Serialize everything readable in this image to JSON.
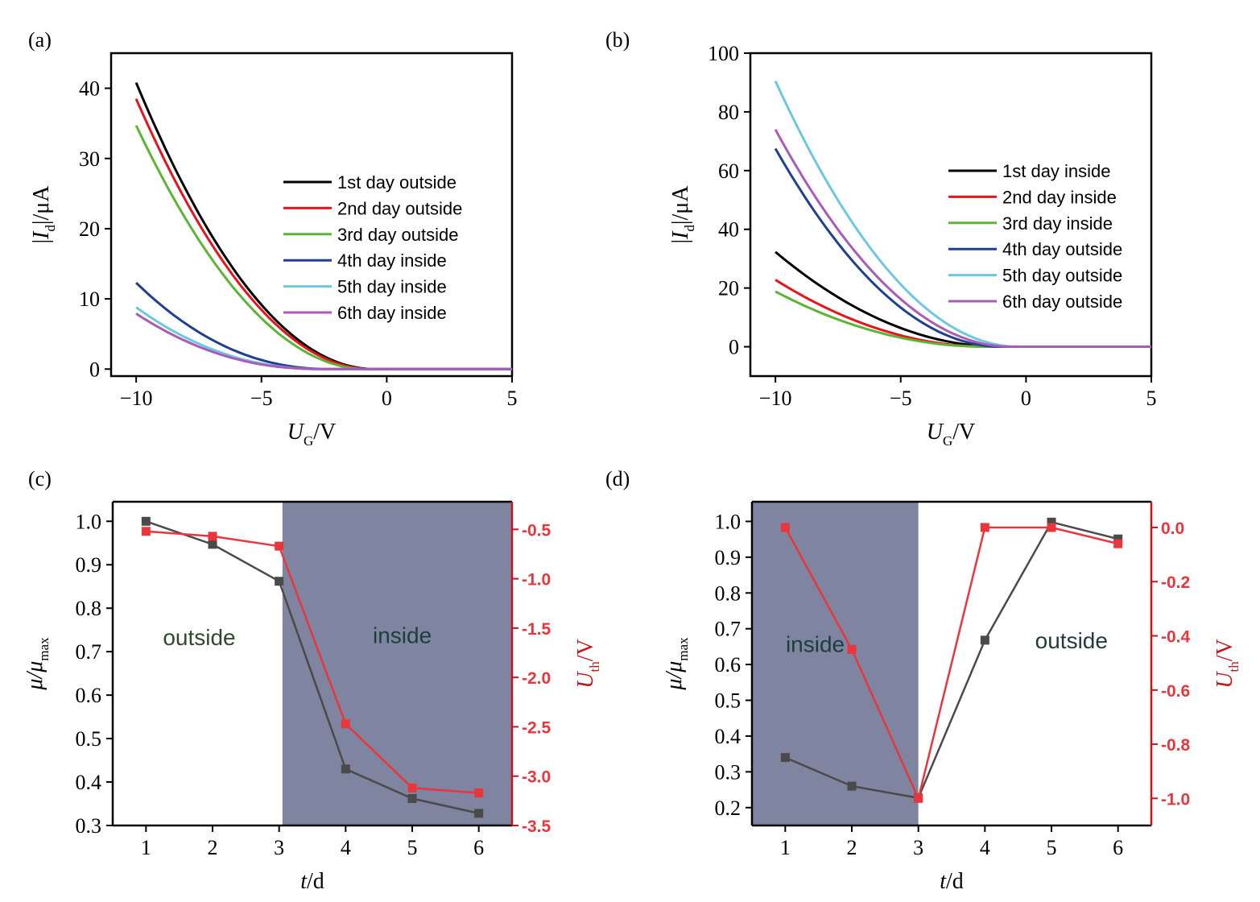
{
  "colors": {
    "axis": "#000000",
    "black": "#000000",
    "red": "#e8141c",
    "green": "#5cb536",
    "blue": "#1f3f91",
    "cyan": "#6cc8e0",
    "purple": "#a95bb5",
    "shade": "#7f85a0",
    "gray_series": "#4a4a4a",
    "red_series": "#e8363c",
    "red_axis": "#c8141c"
  },
  "chart_data": [
    {
      "id": "a",
      "panel_label": "(a)",
      "type": "line",
      "xlabel_main": "U",
      "xlabel_sub": "G",
      "xlabel_tail": "/V",
      "ylabel_pre": "|",
      "ylabel_main": "I",
      "ylabel_sub": "d",
      "ylabel_tail": "|/μA",
      "xlim": [
        -11,
        5
      ],
      "ylim": [
        -1,
        45
      ],
      "xticks": [
        -10,
        -5,
        0,
        5
      ],
      "xtick_labels": [
        "−10",
        "−5",
        "0",
        "5"
      ],
      "yticks": [
        0,
        10,
        20,
        30,
        40
      ],
      "ytick_labels": [
        "0",
        "10",
        "20",
        "30",
        "40"
      ],
      "legend_position": "right",
      "series": [
        {
          "name": "1st day outside",
          "color_key": "black",
          "x0": -10,
          "x_off": -0.5,
          "y_at_x0": 40.8,
          "exp": 2.0
        },
        {
          "name": "2nd day outside",
          "color_key": "red",
          "x0": -10,
          "x_off": -0.6,
          "y_at_x0": 38.5,
          "exp": 2.0
        },
        {
          "name": "3rd day outside",
          "color_key": "green",
          "x0": -10,
          "x_off": -0.8,
          "y_at_x0": 34.7,
          "exp": 2.0
        },
        {
          "name": "4th day inside",
          "color_key": "blue",
          "x0": -10,
          "x_off": -2.2,
          "y_at_x0": 12.3,
          "exp": 2.2
        },
        {
          "name": "5th day inside",
          "color_key": "cyan",
          "x0": -10,
          "x_off": -2.5,
          "y_at_x0": 8.8,
          "exp": 2.2
        },
        {
          "name": "6th day inside",
          "color_key": "purple",
          "x0": -10,
          "x_off": -2.6,
          "y_at_x0": 7.9,
          "exp": 2.2
        }
      ]
    },
    {
      "id": "b",
      "panel_label": "(b)",
      "type": "line",
      "xlabel_main": "U",
      "xlabel_sub": "G",
      "xlabel_tail": "/V",
      "ylabel_pre": "|",
      "ylabel_main": "I",
      "ylabel_sub": "d",
      "ylabel_tail": "|/μA",
      "xlim": [
        -11,
        5
      ],
      "ylim": [
        -10,
        100
      ],
      "xticks": [
        -10,
        -5,
        0,
        5
      ],
      "xtick_labels": [
        "−10",
        "−5",
        "0",
        "5"
      ],
      "yticks": [
        0,
        20,
        40,
        60,
        80,
        100
      ],
      "ytick_labels": [
        "0",
        "20",
        "40",
        "60",
        "80",
        "100"
      ],
      "legend_position": "right",
      "series": [
        {
          "name": "1st day inside",
          "color_key": "black",
          "x0": -10,
          "x_off": -1.0,
          "y_at_x0": 32.3,
          "exp": 2.0
        },
        {
          "name": "2nd day inside",
          "color_key": "red",
          "x0": -10,
          "x_off": -1.5,
          "y_at_x0": 22.8,
          "exp": 2.0
        },
        {
          "name": "3rd day inside",
          "color_key": "green",
          "x0": -10,
          "x_off": -1.6,
          "y_at_x0": 18.8,
          "exp": 2.0
        },
        {
          "name": "4th day outside",
          "color_key": "blue",
          "x0": -10,
          "x_off": -1.0,
          "y_at_x0": 67.5,
          "exp": 2.0
        },
        {
          "name": "5th day outside",
          "color_key": "cyan",
          "x0": -10,
          "x_off": -0.3,
          "y_at_x0": 90.5,
          "exp": 2.0
        },
        {
          "name": "6th day outside",
          "color_key": "purple",
          "x0": -10,
          "x_off": -0.6,
          "y_at_x0": 74.0,
          "exp": 2.0
        }
      ]
    },
    {
      "id": "c",
      "panel_label": "(c)",
      "type": "line",
      "xlabel_main": "t",
      "xlabel_tail": "/d",
      "ylabel_main": "μ",
      "ylabel_mid": "/μ",
      "ylabel_sub": "max",
      "y2label_main": "U",
      "y2label_sub": "th",
      "y2label_tail": "/V",
      "xlim": [
        0.5,
        6.5
      ],
      "ylim": [
        0.3,
        1.045
      ],
      "y2lim": [
        -3.5,
        -0.22
      ],
      "xticks": [
        1,
        2,
        3,
        4,
        5,
        6
      ],
      "xtick_labels": [
        "1",
        "2",
        "3",
        "4",
        "5",
        "6"
      ],
      "yticks": [
        0.3,
        0.4,
        0.5,
        0.6,
        0.7,
        0.8,
        0.9,
        1.0
      ],
      "ytick_labels": [
        "0.3",
        "0.4",
        "0.5",
        "0.6",
        "0.7",
        "0.8",
        "0.9",
        "1.0"
      ],
      "y2ticks": [
        -3.5,
        -3.0,
        -2.5,
        -2.0,
        -1.5,
        -1.0,
        -0.5
      ],
      "y2tick_labels": [
        "-3.5",
        "-3.0",
        "-2.5",
        "-2.0",
        "-1.5",
        "-1.0",
        "-0.5"
      ],
      "shaded_region": [
        3.05,
        6.5
      ],
      "annotations": [
        {
          "text": "outside",
          "x": 1.8,
          "y": 0.715
        },
        {
          "text": "inside",
          "x": 4.85,
          "y": 0.72
        }
      ],
      "series": [
        {
          "name": "μ/μmax",
          "axis": "left",
          "color_key": "gray_series",
          "x": [
            1,
            2,
            3,
            4,
            5,
            6
          ],
          "values": [
            1.0,
            0.947,
            0.862,
            0.43,
            0.362,
            0.328
          ]
        },
        {
          "name": "Uth",
          "axis": "right",
          "color_key": "red_series",
          "x": [
            1,
            2,
            3,
            4,
            5,
            6
          ],
          "values": [
            -0.52,
            -0.57,
            -0.67,
            -2.47,
            -3.12,
            -3.17
          ]
        }
      ]
    },
    {
      "id": "d",
      "panel_label": "(d)",
      "type": "line",
      "xlabel_main": "t",
      "xlabel_tail": "/d",
      "ylabel_main": "μ",
      "ylabel_mid": "/μ",
      "ylabel_sub": "max",
      "y2label_main": "U",
      "y2label_sub": "th",
      "y2label_tail": "/V",
      "xlim": [
        0.5,
        6.5
      ],
      "ylim": [
        0.15,
        1.055
      ],
      "y2lim": [
        -1.1,
        0.095
      ],
      "xticks": [
        1,
        2,
        3,
        4,
        5,
        6
      ],
      "xtick_labels": [
        "1",
        "2",
        "3",
        "4",
        "5",
        "6"
      ],
      "yticks": [
        0.2,
        0.3,
        0.4,
        0.5,
        0.6,
        0.7,
        0.8,
        0.9,
        1.0
      ],
      "ytick_labels": [
        "0.2",
        "0.3",
        "0.4",
        "0.5",
        "0.6",
        "0.7",
        "0.8",
        "0.9",
        "1.0"
      ],
      "y2ticks": [
        -1.0,
        -0.8,
        -0.6,
        -0.4,
        -0.2,
        0.0
      ],
      "y2tick_labels": [
        "-1.0",
        "-0.8",
        "-0.6",
        "-0.4",
        "-0.2",
        "0.0"
      ],
      "shaded_region": [
        0.5,
        3.0
      ],
      "annotations": [
        {
          "text": "inside",
          "x": 1.45,
          "y": 0.635
        },
        {
          "text": "outside",
          "x": 5.3,
          "y": 0.645
        }
      ],
      "series": [
        {
          "name": "μ/μmax",
          "axis": "left",
          "color_key": "gray_series",
          "x": [
            1,
            2,
            3,
            4,
            5,
            6
          ],
          "values": [
            0.34,
            0.26,
            0.227,
            0.668,
            0.998,
            0.951
          ]
        },
        {
          "name": "Uth",
          "axis": "right",
          "color_key": "red_series",
          "x": [
            1,
            2,
            3,
            4,
            5,
            6
          ],
          "values": [
            0.0,
            -0.45,
            -1.0,
            0.0,
            0.0,
            -0.06
          ]
        }
      ]
    }
  ]
}
